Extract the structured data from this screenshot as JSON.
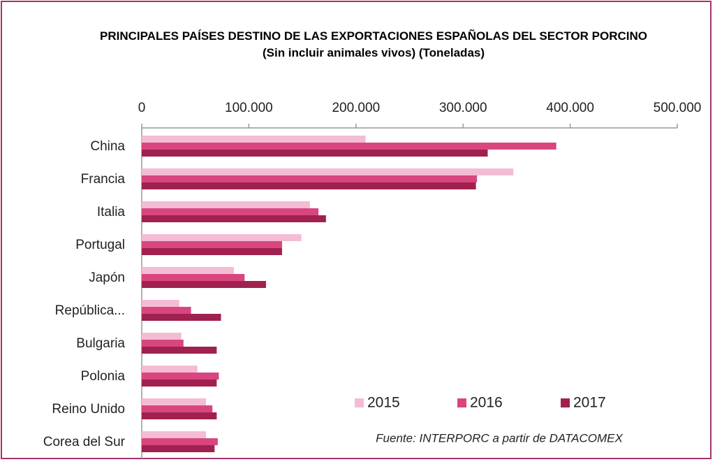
{
  "chart_data": {
    "type": "bar",
    "orientation": "horizontal",
    "title": "PRINCIPALES PAÍSES DESTINO DE LAS EXPORTACIONES ESPAÑOLAS DEL SECTOR PORCINO",
    "subtitle": "(Sin incluir animales vivos) (Toneladas)",
    "categories": [
      "China",
      "Francia",
      "Italia",
      "Portugal",
      "Japón",
      "República...",
      "Bulgaria",
      "Polonia",
      "Reino Unido",
      "Corea del Sur"
    ],
    "series": [
      {
        "name": "2015",
        "color": "#f4bcd4",
        "values": [
          209000,
          347000,
          157000,
          149000,
          86000,
          35000,
          37000,
          52000,
          60000,
          60000
        ]
      },
      {
        "name": "2016",
        "color": "#d9467f",
        "values": [
          387000,
          313000,
          165000,
          131000,
          96000,
          46000,
          39000,
          72000,
          66000,
          71000
        ]
      },
      {
        "name": "2017",
        "color": "#a0214f",
        "values": [
          323000,
          312000,
          172000,
          131000,
          116000,
          74000,
          70000,
          70000,
          70000,
          68000
        ]
      }
    ],
    "xlim": [
      0,
      500000
    ],
    "xticks": [
      0,
      {
        "value": 100000,
        "label": "100.000"
      },
      {
        "value": 200000,
        "label": "200.000"
      },
      {
        "value": 300000,
        "label": "300.000"
      },
      {
        "value": 400000,
        "label": "400.000"
      },
      {
        "value": 500000,
        "label": "500.000"
      }
    ],
    "annotation": "Fuente: INTERPORC  a partir de DATACOMEX",
    "legend": "bottom-right"
  }
}
